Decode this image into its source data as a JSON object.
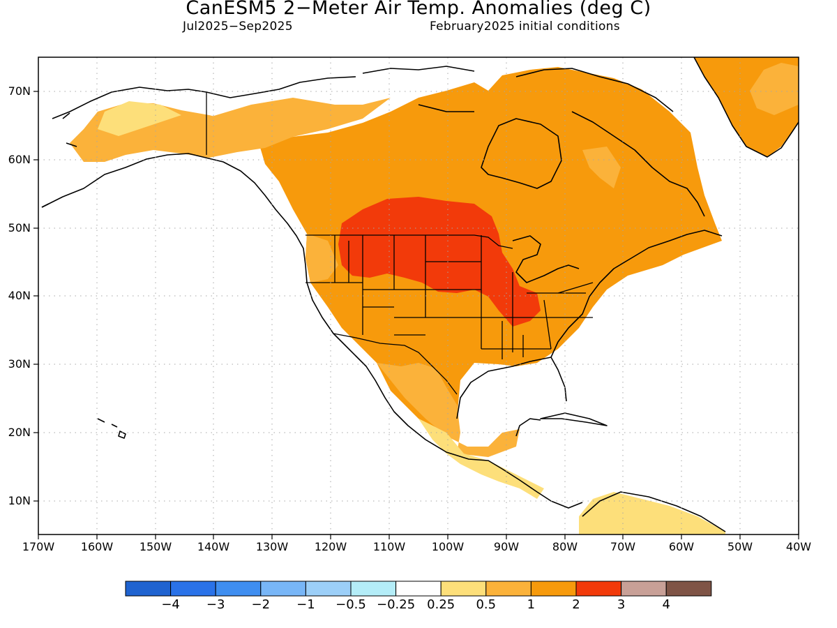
{
  "header": {
    "title": "CanESM5 2−Meter Air Temp. Anomalies (deg C)",
    "period": "Jul2025−Sep2025",
    "init": "February2025 initial conditions"
  },
  "map": {
    "lat_labels": [
      "70N",
      "60N",
      "50N",
      "40N",
      "30N",
      "20N",
      "10N"
    ],
    "lon_labels": [
      "170W",
      "160W",
      "150W",
      "140W",
      "130W",
      "120W",
      "110W",
      "100W",
      "90W",
      "80W",
      "70W",
      "60W",
      "50W",
      "40W"
    ],
    "lon_range": [
      "170W",
      "40W"
    ],
    "lat_range": [
      "5N",
      "75N"
    ],
    "grid": "dotted",
    "ocean_color": "#ffffff",
    "land_outline_color": "#000000"
  },
  "colorbar": {
    "levels": [
      "−4",
      "−3",
      "−2",
      "−1",
      "−0.5",
      "−0.25",
      "0.25",
      "0.5",
      "1",
      "2",
      "3",
      "4"
    ],
    "colors": [
      "#1f63d0",
      "#2a72e8",
      "#3f8ef0",
      "#78b6f7",
      "#9ccff8",
      "#b4edf8",
      "#ffffff",
      "#fddf7a",
      "#fbb23a",
      "#f79a0c",
      "#f23a0a",
      "#c8a097",
      "#7f5446"
    ],
    "units": "deg C"
  }
}
